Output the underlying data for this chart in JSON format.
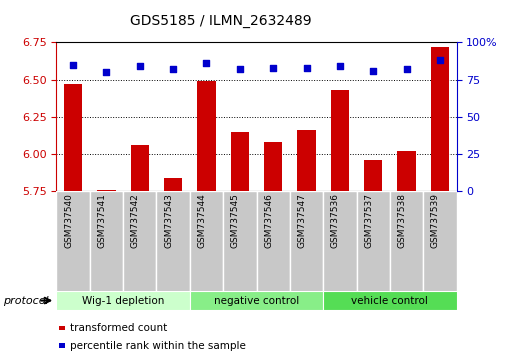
{
  "title": "GDS5185 / ILMN_2632489",
  "categories": [
    "GSM737540",
    "GSM737541",
    "GSM737542",
    "GSM737543",
    "GSM737544",
    "GSM737545",
    "GSM737546",
    "GSM737547",
    "GSM737536",
    "GSM737537",
    "GSM737538",
    "GSM737539"
  ],
  "bar_values": [
    6.47,
    5.76,
    6.06,
    5.84,
    6.49,
    6.15,
    6.08,
    6.16,
    6.43,
    5.96,
    6.02,
    6.72
  ],
  "bar_base": 5.75,
  "dot_values": [
    85,
    80,
    84,
    82,
    86,
    82,
    83,
    83,
    84,
    81,
    82,
    88
  ],
  "bar_color": "#cc0000",
  "dot_color": "#0000cc",
  "ylim_left": [
    5.75,
    6.75
  ],
  "ylim_right": [
    0,
    100
  ],
  "yticks_left": [
    5.75,
    6.0,
    6.25,
    6.5,
    6.75
  ],
  "yticks_right": [
    0,
    25,
    50,
    75,
    100
  ],
  "ytick_labels_right": [
    "0",
    "25",
    "50",
    "75",
    "100%"
  ],
  "groups": [
    {
      "label": "Wig-1 depletion",
      "start": 0,
      "end": 3
    },
    {
      "label": "negative control",
      "start": 4,
      "end": 7
    },
    {
      "label": "vehicle control",
      "start": 8,
      "end": 11
    }
  ],
  "group_colors": [
    "#ccffcc",
    "#88ee88",
    "#55dd55"
  ],
  "sample_box_color": "#c8c8c8",
  "protocol_label": "protocol",
  "legend_bar_label": "transformed count",
  "legend_dot_label": "percentile rank within the sample",
  "grid_color": "#000000",
  "bar_width": 0.55
}
